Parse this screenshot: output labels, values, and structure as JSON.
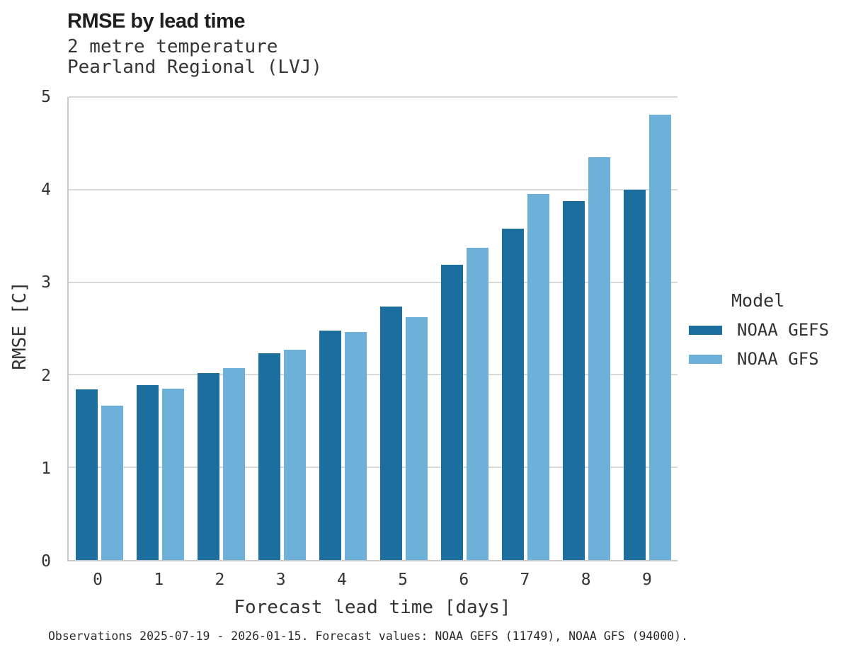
{
  "title": "RMSE by lead time",
  "subtitle_line1": "2 metre temperature",
  "subtitle_line2": "Pearland Regional (LVJ)",
  "footer": "Observations 2025-07-19 - 2026-01-15. Forecast values: NOAA GEFS (11749), NOAA GFS (94000).",
  "legend": {
    "title": "Model",
    "items": [
      {
        "label": "NOAA GEFS",
        "color": "#1c6e9e"
      },
      {
        "label": "NOAA GFS",
        "color": "#6db1d8"
      }
    ]
  },
  "colors": {
    "gefs": "#1c6e9e",
    "gfs": "#6db1d8",
    "gridline": "#d9d9d9",
    "spine": "#c9c9c9"
  },
  "chart_data": {
    "type": "bar",
    "title": "RMSE by lead time",
    "subtitle": [
      "2 metre temperature",
      "Pearland Regional (LVJ)"
    ],
    "categories": [
      "0",
      "1",
      "2",
      "3",
      "4",
      "5",
      "6",
      "7",
      "8",
      "9"
    ],
    "series": [
      {
        "name": "NOAA GEFS",
        "color": "#1c6e9e",
        "values": [
          1.84,
          1.89,
          2.02,
          2.23,
          2.48,
          2.74,
          3.19,
          3.58,
          3.88,
          4.0
        ]
      },
      {
        "name": "NOAA GFS",
        "color": "#6db1d8",
        "values": [
          1.67,
          1.85,
          2.07,
          2.27,
          2.46,
          2.62,
          3.37,
          3.95,
          4.35,
          4.81
        ]
      }
    ],
    "xlabel": "Forecast lead time [days]",
    "ylabel": "RMSE [C]",
    "ylim": [
      0,
      5
    ],
    "yticks": [
      0,
      1,
      2,
      3,
      4,
      5
    ],
    "grid": "horizontal-at-integer-yticks",
    "legend_title": "Model",
    "legend_position": "right"
  }
}
